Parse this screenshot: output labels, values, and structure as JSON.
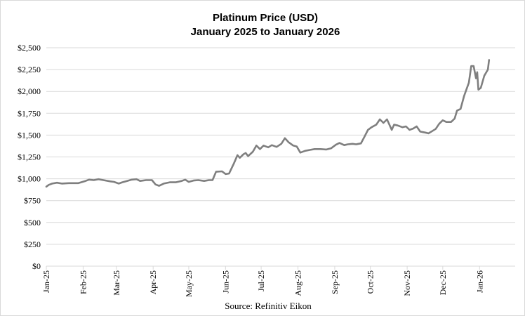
{
  "chart_data": {
    "type": "line",
    "title": "Platinum Price (USD)",
    "subtitle": "January 2025 to January 2026",
    "source": "Source: Refinitiv Eikon",
    "xlabel": "",
    "ylabel": "",
    "ylim": [
      0,
      2500
    ],
    "y_ticks": [
      0,
      250,
      500,
      750,
      1000,
      1250,
      1500,
      1750,
      2000,
      2250,
      2500
    ],
    "y_tick_labels": [
      "$0",
      "$250",
      "$500",
      "$750",
      "$1,000",
      "$1,250",
      "$1,500",
      "$1,750",
      "$2,000",
      "$2,250",
      "$2,500"
    ],
    "x_range": [
      "2025-01-01",
      "2026-01-31"
    ],
    "x_ticks": [
      "2025-01-01",
      "2025-02-01",
      "2025-03-01",
      "2025-04-01",
      "2025-05-01",
      "2025-06-01",
      "2025-07-01",
      "2025-08-01",
      "2025-09-01",
      "2025-10-01",
      "2025-11-01",
      "2025-12-01",
      "2026-01-01"
    ],
    "x_tick_labels": [
      "Jan-25",
      "Feb-25",
      "Mar-25",
      "Apr-25",
      "May-25",
      "Jun-25",
      "Jul-25",
      "Aug-25",
      "Sep-25",
      "Oct-25",
      "Nov-25",
      "Dec-25",
      "Jan-26"
    ],
    "grid": "horizontal",
    "line_color": "#7f7f7f",
    "series": [
      {
        "points": [
          [
            "2025-01-01",
            910
          ],
          [
            "2025-01-03",
            930
          ],
          [
            "2025-01-06",
            945
          ],
          [
            "2025-01-10",
            955
          ],
          [
            "2025-01-14",
            945
          ],
          [
            "2025-01-20",
            950
          ],
          [
            "2025-01-28",
            950
          ],
          [
            "2025-02-03",
            975
          ],
          [
            "2025-02-06",
            990
          ],
          [
            "2025-02-10",
            985
          ],
          [
            "2025-02-14",
            995
          ],
          [
            "2025-02-18",
            985
          ],
          [
            "2025-02-24",
            970
          ],
          [
            "2025-02-27",
            965
          ],
          [
            "2025-03-03",
            945
          ],
          [
            "2025-03-06",
            960
          ],
          [
            "2025-03-10",
            975
          ],
          [
            "2025-03-14",
            990
          ],
          [
            "2025-03-18",
            995
          ],
          [
            "2025-03-21",
            975
          ],
          [
            "2025-03-26",
            985
          ],
          [
            "2025-03-31",
            985
          ],
          [
            "2025-04-03",
            935
          ],
          [
            "2025-04-06",
            920
          ],
          [
            "2025-04-10",
            945
          ],
          [
            "2025-04-15",
            960
          ],
          [
            "2025-04-20",
            960
          ],
          [
            "2025-04-25",
            975
          ],
          [
            "2025-04-28",
            990
          ],
          [
            "2025-05-01",
            965
          ],
          [
            "2025-05-05",
            980
          ],
          [
            "2025-05-09",
            985
          ],
          [
            "2025-05-14",
            975
          ],
          [
            "2025-05-18",
            985
          ],
          [
            "2025-05-21",
            985
          ],
          [
            "2025-05-24",
            1080
          ],
          [
            "2025-05-29",
            1085
          ],
          [
            "2025-06-01",
            1055
          ],
          [
            "2025-06-04",
            1060
          ],
          [
            "2025-06-08",
            1175
          ],
          [
            "2025-06-11",
            1270
          ],
          [
            "2025-06-13",
            1240
          ],
          [
            "2025-06-16",
            1280
          ],
          [
            "2025-06-18",
            1295
          ],
          [
            "2025-06-20",
            1260
          ],
          [
            "2025-06-24",
            1310
          ],
          [
            "2025-06-27",
            1380
          ],
          [
            "2025-06-30",
            1340
          ],
          [
            "2025-07-03",
            1380
          ],
          [
            "2025-07-07",
            1360
          ],
          [
            "2025-07-10",
            1385
          ],
          [
            "2025-07-14",
            1365
          ],
          [
            "2025-07-18",
            1400
          ],
          [
            "2025-07-21",
            1465
          ],
          [
            "2025-07-24",
            1420
          ],
          [
            "2025-07-28",
            1380
          ],
          [
            "2025-07-31",
            1370
          ],
          [
            "2025-08-03",
            1300
          ],
          [
            "2025-08-07",
            1320
          ],
          [
            "2025-08-11",
            1330
          ],
          [
            "2025-08-15",
            1340
          ],
          [
            "2025-08-20",
            1340
          ],
          [
            "2025-08-25",
            1335
          ],
          [
            "2025-08-29",
            1350
          ],
          [
            "2025-09-02",
            1390
          ],
          [
            "2025-09-05",
            1410
          ],
          [
            "2025-09-09",
            1385
          ],
          [
            "2025-09-12",
            1395
          ],
          [
            "2025-09-16",
            1400
          ],
          [
            "2025-09-19",
            1395
          ],
          [
            "2025-09-23",
            1405
          ],
          [
            "2025-09-26",
            1480
          ],
          [
            "2025-09-29",
            1560
          ],
          [
            "2025-10-02",
            1590
          ],
          [
            "2025-10-06",
            1620
          ],
          [
            "2025-10-09",
            1680
          ],
          [
            "2025-10-12",
            1640
          ],
          [
            "2025-10-15",
            1680
          ],
          [
            "2025-10-19",
            1560
          ],
          [
            "2025-10-21",
            1620
          ],
          [
            "2025-10-24",
            1610
          ],
          [
            "2025-10-28",
            1590
          ],
          [
            "2025-10-31",
            1600
          ],
          [
            "2025-11-03",
            1560
          ],
          [
            "2025-11-06",
            1575
          ],
          [
            "2025-11-09",
            1600
          ],
          [
            "2025-11-12",
            1540
          ],
          [
            "2025-11-16",
            1530
          ],
          [
            "2025-11-19",
            1520
          ],
          [
            "2025-11-22",
            1545
          ],
          [
            "2025-11-25",
            1570
          ],
          [
            "2025-11-28",
            1630
          ],
          [
            "2025-12-01",
            1670
          ],
          [
            "2025-12-04",
            1650
          ],
          [
            "2025-12-08",
            1650
          ],
          [
            "2025-12-11",
            1690
          ],
          [
            "2025-12-13",
            1780
          ],
          [
            "2025-12-16",
            1800
          ],
          [
            "2025-12-19",
            1950
          ],
          [
            "2025-12-23",
            2100
          ],
          [
            "2025-12-25",
            2290
          ],
          [
            "2025-12-27",
            2290
          ],
          [
            "2025-12-29",
            2150
          ],
          [
            "2025-12-30",
            2220
          ],
          [
            "2025-12-31",
            2020
          ],
          [
            "2026-01-02",
            2040
          ],
          [
            "2026-01-05",
            2180
          ],
          [
            "2026-01-08",
            2250
          ],
          [
            "2026-01-09",
            2360
          ]
        ]
      }
    ]
  }
}
